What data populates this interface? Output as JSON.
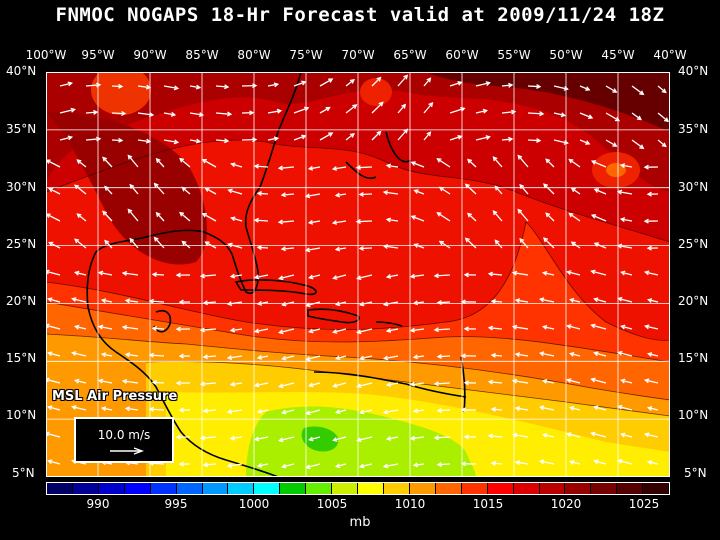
{
  "title": "FNMOC NOGAPS 18-Hr Forecast valid at 2009/11/24 18Z",
  "variable_label": "MSL Air Pressure",
  "vector_legend": {
    "speed_label": "10.0 m/s"
  },
  "units": "mb",
  "lon_labels": [
    "100°W",
    "95°W",
    "90°W",
    "85°W",
    "80°W",
    "75°W",
    "70°W",
    "65°W",
    "60°W",
    "55°W",
    "50°W",
    "45°W",
    "40°W"
  ],
  "lat_labels": [
    "40°N",
    "35°N",
    "30°N",
    "25°N",
    "20°N",
    "15°N",
    "10°N",
    "5°N"
  ],
  "colorbar": {
    "labels": [
      "990",
      "995",
      "1000",
      "1005",
      "1010",
      "1015",
      "1020",
      "1025"
    ],
    "colors": [
      "#000066",
      "#000099",
      "#0000cc",
      "#0000ff",
      "#0033ff",
      "#0066ff",
      "#0099ff",
      "#00ccff",
      "#00ffff",
      "#00cc00",
      "#66ee00",
      "#ccee00",
      "#ffff00",
      "#ffcc00",
      "#ff9900",
      "#ff6600",
      "#ff3300",
      "#ff0000",
      "#dd0000",
      "#bb0000",
      "#990000",
      "#770000",
      "#550000",
      "#330000"
    ]
  },
  "map_colors": {
    "ocean_red": "#ee1100",
    "dark_red_1": "#cc0000",
    "dark_red_2": "#aa0000",
    "darkest": "#660000",
    "orange_red": "#ff3300",
    "orange": "#ff6600",
    "orange_light": "#ff9900",
    "yellow_orange": "#ffcc00",
    "yellow": "#ffee00",
    "lime": "#aaee00",
    "green": "#33cc00",
    "grid": "#ffffff",
    "coast": "#000000",
    "wind": "#ffffff"
  }
}
